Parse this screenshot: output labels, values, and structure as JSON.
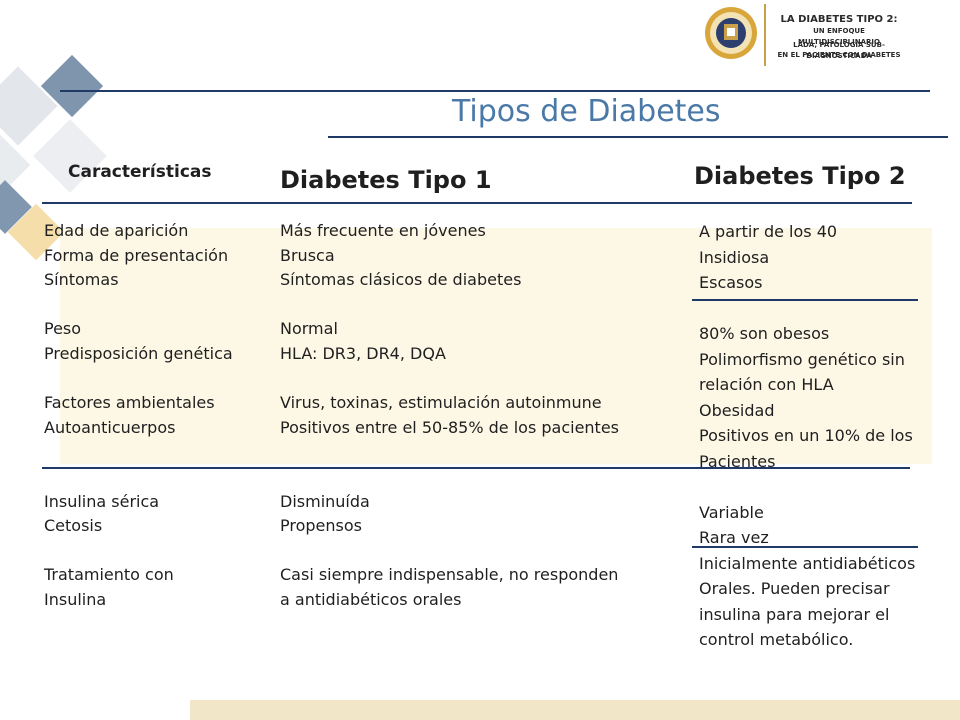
{
  "header": {
    "brand_line1": "LA DIABETES TIPO 2:",
    "brand_line2": "UN ENFOQUE MULTIDISCIPLINARIO",
    "brand_line3": "LADA, PATOLOGÍA SUB-DIAGNOSTICADA",
    "brand_line4": "EN EL PACIENTE CON DIABETES"
  },
  "title": "Tipos de Diabetes",
  "columns": {
    "caracteristicas": "Características",
    "tipo1": "Diabetes Tipo 1",
    "tipo2": "Diabetes Tipo 2"
  },
  "rows_labels": [
    "Edad de aparición",
    "Forma de presentación",
    "Síntomas",
    "",
    "Peso",
    "Predisposición genética",
    "",
    "Factores ambientales",
    "Autoanticuerpos",
    "",
    "",
    "Insulina sérica",
    "Cetosis",
    "",
    "Tratamiento con",
    "Insulina"
  ],
  "rows_tipo1": [
    "Más frecuente en jóvenes",
    "Brusca",
    "Síntomas clásicos de diabetes",
    "",
    "Normal",
    "HLA: DR3, DR4, DQA",
    "",
    "Virus, toxinas, estimulación autoinmune",
    "Positivos entre el 50-85% de los pacientes",
    "",
    "",
    "Disminuída",
    "Propensos",
    "",
    "Casi siempre indispensable, no responden",
    "a antidiabéticos orales"
  ],
  "rows_tipo2": [
    "A partir de los 40",
    "Insidiosa",
    "Escasos",
    "",
    "80% son obesos",
    "Polimorfismo genético sin",
    "relación con HLA",
    "Obesidad",
    "Positivos en un 10% de los",
    "Pacientes",
    "",
    "Variable",
    "Rara vez",
    "Inicialmente antidiabéticos",
    "Orales.  Pueden precisar",
    "insulina para mejorar el",
    "control metabólico."
  ],
  "colors": {
    "title": "#4a79a8",
    "rule": "#1f3a66",
    "cream": "#fdf8e6",
    "footer_bar": "#f1e6c8",
    "diamond_dark": "#7f94ad",
    "diamond_light": "#dfe3e8",
    "diamond_gold": "#f6deaa"
  }
}
